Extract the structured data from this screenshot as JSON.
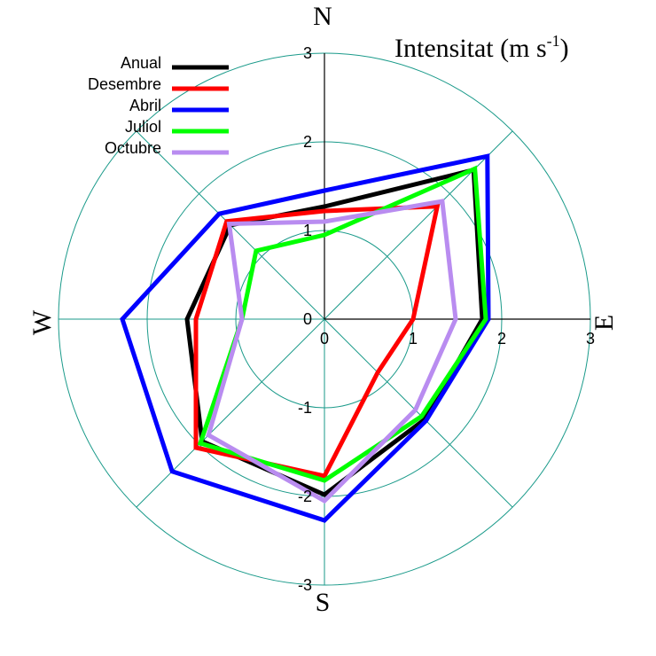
{
  "chart_data": {
    "type": "radar",
    "title": "Intensitat (m s",
    "title_superscript": "-1",
    "title_suffix": ")",
    "directions": {
      "north": "N",
      "east": "E",
      "south": "S",
      "west": "W"
    },
    "x_tick_labels": [
      "0",
      "1",
      "2",
      "3"
    ],
    "y_tick_labels": [
      "3",
      "2",
      "1",
      "0",
      "-1",
      "-2",
      "-3"
    ],
    "rlim": [
      0,
      3
    ],
    "angles_deg": [
      0,
      45,
      90,
      135,
      180,
      225,
      270,
      315
    ],
    "series": [
      {
        "name": "Anual",
        "color": "#000000",
        "values": [
          1.27,
          2.38,
          1.78,
          1.6,
          1.98,
          1.95,
          1.55,
          1.5
        ]
      },
      {
        "name": "Desembre",
        "color": "#ff0000",
        "values": [
          1.22,
          1.8,
          1.0,
          0.85,
          1.77,
          2.05,
          1.45,
          1.56
        ]
      },
      {
        "name": "Abril",
        "color": "#0000ff",
        "values": [
          1.45,
          2.6,
          1.85,
          1.62,
          2.27,
          2.43,
          2.28,
          1.68
        ]
      },
      {
        "name": "Juliol",
        "color": "#00ff00",
        "values": [
          0.95,
          2.4,
          1.82,
          1.55,
          1.82,
          1.98,
          0.93,
          1.09
        ]
      },
      {
        "name": "Octubre",
        "color": "#b98cf0",
        "values": [
          1.1,
          1.88,
          1.48,
          1.45,
          2.05,
          1.85,
          0.93,
          1.52
        ]
      }
    ]
  }
}
